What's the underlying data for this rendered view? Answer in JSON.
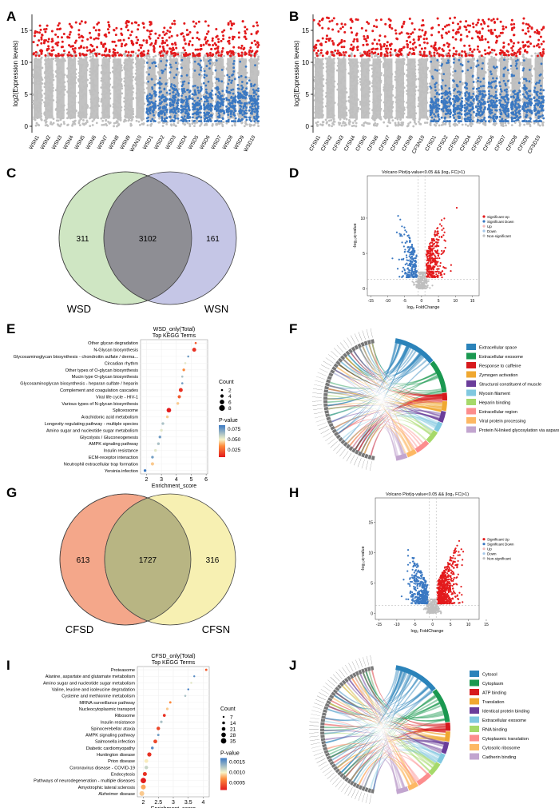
{
  "panel_labels": [
    "A",
    "B",
    "C",
    "D",
    "E",
    "F",
    "G",
    "H",
    "I",
    "J"
  ],
  "colors": {
    "red": "#e31a1c",
    "blue": "#3a78c2",
    "gray": "#bfbfbf",
    "venn_left_green": "#cfe6c3",
    "venn_right_purple": "#c5c6e6",
    "venn_overlap_a": "#8e8e94",
    "venn_left_salmon": "#f4a78a",
    "venn_right_yellow": "#f7f0b2",
    "venn_overlap_b": "#b8b583"
  },
  "chart_data": [
    {
      "id": "A",
      "type": "scatter",
      "ylabel": "log2(Expression levels)",
      "yticks": [
        0,
        5,
        10,
        15
      ],
      "ylim": [
        -1,
        17.5
      ],
      "categories": [
        "WSN1",
        "WSN2",
        "WSN3",
        "WSN4",
        "WSN5",
        "WSN6",
        "WSN7",
        "WSN8",
        "WSN9",
        "WSN10",
        "WSD1",
        "WSD2",
        "WSD3",
        "WSD4",
        "WSD5",
        "WSD6",
        "WSD7",
        "WSD8",
        "WSD9",
        "WSD10"
      ],
      "blue_from_index": 10,
      "distribution": {
        "gray_range": [
          0,
          11.5
        ],
        "red_range": [
          11,
          16.5
        ],
        "blue_range": [
          0.8,
          10.5
        ]
      }
    },
    {
      "id": "B",
      "type": "scatter",
      "ylabel": "log2(Expression levels)",
      "yticks": [
        0,
        5,
        10,
        15
      ],
      "ylim": [
        -1,
        17.5
      ],
      "categories": [
        "CFSN1",
        "CFSN2",
        "CFSN3",
        "CFSN4",
        "CFSN5",
        "CFSN6",
        "CFSN7",
        "CFSN8",
        "CFSN9",
        "CFSN10",
        "CFSD1",
        "CFSD2",
        "CFSD3",
        "CFSD4",
        "CFSD5",
        "CFSD6",
        "CFSD7",
        "CFSD8",
        "CFSD9",
        "CFSD10"
      ],
      "blue_from_index": 10,
      "distribution": {
        "gray_range": [
          0,
          11.5
        ],
        "red_range": [
          11,
          17
        ],
        "blue_range": [
          0.8,
          10.5
        ]
      }
    },
    {
      "id": "C",
      "type": "venn",
      "sets": [
        {
          "name": "WSD",
          "only": "311"
        },
        {
          "name": "WSN",
          "only": "161"
        }
      ],
      "overlap": "3102"
    },
    {
      "id": "D",
      "type": "volcano",
      "title": "Volcano Plot(q-value<0.05 && |log₂ FC|>1)",
      "xlabel": "log₂ FoldChange",
      "ylabel": "-log₁₀q-value",
      "xticks": [
        -15,
        -10,
        -5,
        0,
        5,
        10,
        15
      ],
      "yticks": [
        0,
        5,
        10
      ],
      "xlim": [
        -16,
        17
      ],
      "ylim": [
        -1,
        16
      ],
      "legend": [
        "Significant Up",
        "Significant Down",
        "Up",
        "Down",
        "Non-significant"
      ],
      "n_up": 320,
      "n_down": 220
    },
    {
      "id": "E",
      "type": "scatter",
      "title": "WSD_only(Total)",
      "subtitle": "Top KEGG Terms",
      "xlabel": "Enrichment_score",
      "xticks": [
        2,
        3,
        4,
        5,
        6
      ],
      "xlim": [
        1.6,
        6.1
      ],
      "terms": [
        "Other glycan degradation",
        "N-Glycan biosynthesis",
        "Glycosaminoglycan biosynthesis - chondroitin sulfate / derma...",
        "Circadian rhythm",
        "Other types of O-glycan biosynthesis",
        "Mucin type O-glycan biosynthesis",
        "Glycosaminoglycan biosynthesis - heparan sulfate / heparin",
        "Complement and coagulation cascades",
        "Viral life cycle - HIV-1",
        "Various types of N-glycan biosynthesis",
        "Spliceosome",
        "Arachidonic acid metabolism",
        "Longevity regulating pathway - multiple species",
        "Amino sugar and nucleotide sugar metabolism",
        "Glycolysis / Gluconeogenesis",
        "AMPK signaling pathway",
        "Insulin resistance",
        "ECM-receptor interaction",
        "Neutrophil extracellular trap formation",
        "Yersinia infection"
      ],
      "scores": [
        5.3,
        5.2,
        4.8,
        4.6,
        4.5,
        4.4,
        4.4,
        4.3,
        4.2,
        4.1,
        3.5,
        3.4,
        3.1,
        3.0,
        2.9,
        2.8,
        2.6,
        2.4,
        2.4,
        1.9
      ],
      "counts": [
        2,
        5,
        2,
        2,
        3,
        2,
        2,
        5,
        4,
        3,
        6,
        3,
        3,
        3,
        3,
        3,
        3,
        3,
        4,
        3
      ],
      "pvalues": [
        0.02,
        0.01,
        0.07,
        0.05,
        0.03,
        0.06,
        0.07,
        0.01,
        0.02,
        0.04,
        0.005,
        0.04,
        0.06,
        0.05,
        0.07,
        0.06,
        0.05,
        0.07,
        0.04,
        0.08
      ],
      "legend_count_title": "Count",
      "legend_counts": [
        "2",
        "4",
        "6",
        "8"
      ],
      "legend_p_title": "P-value",
      "legend_p_ticks": [
        "0.075",
        "0.050",
        "0.025"
      ]
    },
    {
      "id": "F",
      "type": "chord",
      "terms": [
        "Extracellular space",
        "Extracellular exosome",
        "Response to caffeine",
        "Zymogen activation",
        "Structural constituent of muscle",
        "Myosin filament",
        "Heparin binding",
        "Extracellular region",
        "Viral protein processing",
        "Protein N-linked glycosylation via asparagine"
      ],
      "colors": [
        "#2b83ba",
        "#1a9850",
        "#d7191c",
        "#f0a830",
        "#6a3d9a",
        "#80c8e0",
        "#a6d96a",
        "#fc8d8d",
        "#fdb863",
        "#c2a5cf"
      ],
      "n_genes": 48
    },
    {
      "id": "G",
      "type": "venn",
      "sets": [
        {
          "name": "CFSD",
          "only": "613"
        },
        {
          "name": "CFSN",
          "only": "316"
        }
      ],
      "overlap": "1727"
    },
    {
      "id": "H",
      "type": "volcano",
      "title": "Volcano Plot(q-value<0.05 && |log₂ FC|>1)",
      "xlabel": "log₂ FoldChange",
      "ylabel": "-log₁₀q-value",
      "xticks": [
        -15,
        -10,
        -5,
        0,
        5,
        10,
        15
      ],
      "yticks": [
        0,
        5,
        10,
        15
      ],
      "xlim": [
        -16,
        13
      ],
      "ylim": [
        -1,
        19
      ],
      "legend": [
        "Significant Up",
        "Significant Down",
        "Up",
        "Down",
        "Non-significant"
      ],
      "n_up": 600,
      "n_down": 380
    },
    {
      "id": "I",
      "type": "scatter",
      "title": "CFSD_only(Total)",
      "subtitle": "Top KEGG Terms",
      "xlabel": "Enrichment_score",
      "xticks": [
        2.0,
        2.5,
        3.0,
        3.5,
        4.0
      ],
      "xlim": [
        1.8,
        4.2
      ],
      "terms": [
        "Proteasome",
        "Alanine, aspartate and glutamate metabolism",
        "Amino sugar and nucleotide sugar metabolism",
        "Valine, leucine and isoleucine degradation",
        "Cysteine and methionine metabolism",
        "MRNA surveillance pathway",
        "Nucleocytoplasmic transport",
        "Ribosome",
        "Insulin resistance",
        "Spinocerebellar ataxia",
        "AMPK signaling pathway",
        "Salmonella infection",
        "Diabetic cardiomyopathy",
        "Huntington disease",
        "Prion disease",
        "Coronavirus disease - COVID-19",
        "Endocytosis",
        "Pathways of neurodegeneration - multiple diseases",
        "Amyotrophic lateral sclerosis",
        "Alzheimer disease"
      ],
      "scores": [
        4.1,
        3.7,
        3.6,
        3.5,
        3.4,
        2.9,
        2.8,
        2.7,
        2.6,
        2.5,
        2.5,
        2.4,
        2.3,
        2.2,
        2.1,
        2.1,
        2.05,
        2.0,
        2.0,
        1.95
      ],
      "counts": [
        10,
        7,
        8,
        7,
        8,
        10,
        12,
        15,
        12,
        20,
        10,
        22,
        14,
        25,
        22,
        20,
        24,
        35,
        30,
        30
      ],
      "pvalues": [
        0.0004,
        0.0015,
        0.001,
        0.0016,
        0.0012,
        0.0006,
        0.0008,
        0.0002,
        0.0012,
        0.0003,
        0.0014,
        0.0003,
        0.0015,
        0.0002,
        0.0009,
        0.0011,
        0.0002,
        0.0001,
        0.0007,
        0.0008
      ],
      "legend_count_title": "Count",
      "legend_counts": [
        "7",
        "14",
        "21",
        "28",
        "35"
      ],
      "legend_p_title": "P-value",
      "legend_p_ticks": [
        "0.0015",
        "0.0010",
        "0.0005"
      ]
    },
    {
      "id": "J",
      "type": "chord",
      "terms": [
        "Cytosol",
        "Cytoplasm",
        "ATP binding",
        "Translation",
        "Identical protein binding",
        "Extracellular exosome",
        "RNA binding",
        "Cytoplasmic translation",
        "Cytosolic ribosome",
        "Cadherin binding"
      ],
      "colors": [
        "#2b83ba",
        "#1a9850",
        "#d7191c",
        "#f0a830",
        "#6a3d9a",
        "#80c8e0",
        "#a6d96a",
        "#fc8d8d",
        "#fdb863",
        "#c2a5cf"
      ],
      "n_genes": 55
    }
  ]
}
